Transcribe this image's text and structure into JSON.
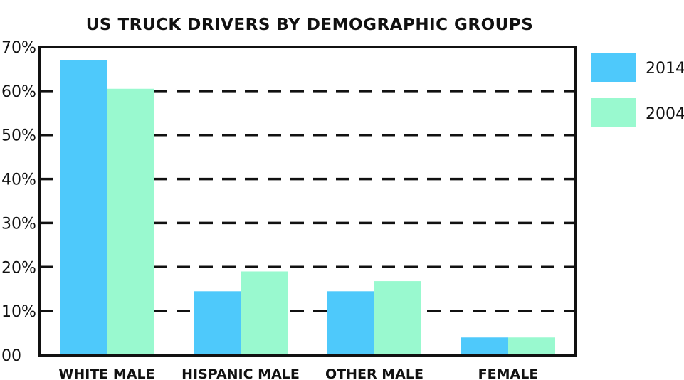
{
  "chart_data": {
    "type": "bar",
    "title": "US TRUCK DRIVERS BY DEMOGRAPHIC GROUPS",
    "categories": [
      "WHITE MALE",
      "HISPANIC MALE",
      "OTHER MALE",
      "FEMALE"
    ],
    "series": [
      {
        "name": "2014",
        "values": [
          67,
          14.5,
          14.5,
          4
        ],
        "color": "#4ec9fb"
      },
      {
        "name": "2004",
        "values": [
          60.5,
          19,
          16.8,
          4
        ],
        "color": "#99f9cf"
      }
    ],
    "yticks": [
      "00",
      "10%",
      "20%",
      "30%",
      "40%",
      "50%",
      "60%",
      "70%"
    ],
    "ylim": [
      0,
      70
    ],
    "grid": "dashed horizontal",
    "legend": "right"
  }
}
